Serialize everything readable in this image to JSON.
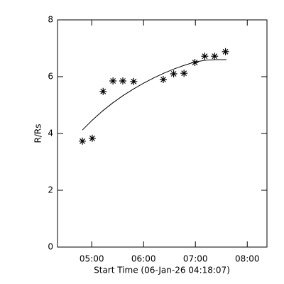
{
  "chart_data": {
    "type": "scatter",
    "x_label": "Start Time (06-Jan-26 04:18:07)",
    "y_label": "R/Rs",
    "x": [
      4.82,
      5.01,
      5.22,
      5.41,
      5.6,
      5.81,
      6.38,
      6.58,
      6.78,
      6.99,
      7.18,
      7.37,
      7.58
    ],
    "values": [
      3.73,
      3.83,
      5.48,
      5.85,
      5.85,
      5.83,
      5.9,
      6.1,
      6.12,
      6.5,
      6.72,
      6.72,
      6.88
    ],
    "fit": {
      "x": [
        4.82,
        5.0,
        5.2,
        5.4,
        5.6,
        5.8,
        6.0,
        6.2,
        6.4,
        6.6,
        6.8,
        7.0,
        7.2,
        7.4,
        7.6
      ],
      "values": [
        4.12,
        4.45,
        4.78,
        5.07,
        5.33,
        5.56,
        5.77,
        5.96,
        6.13,
        6.28,
        6.41,
        6.52,
        6.58,
        6.6,
        6.6
      ]
    },
    "color": "#000000",
    "xlim": [
      4.34,
      8.38
    ],
    "xticks": [
      {
        "value": 5,
        "label": "05:00"
      },
      {
        "value": 6,
        "label": "06:00"
      },
      {
        "value": 7,
        "label": "07:00"
      },
      {
        "value": 8,
        "label": "08:00"
      }
    ],
    "ylim": [
      0,
      8
    ],
    "yticks": [
      0,
      2,
      4,
      6,
      8
    ]
  }
}
